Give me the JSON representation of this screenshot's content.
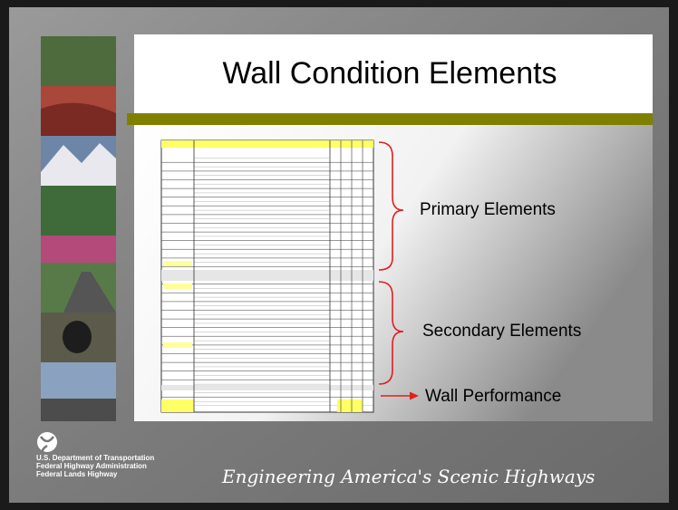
{
  "slide": {
    "title": "Wall Condition Elements",
    "labels": [
      "Primary Elements",
      "Secondary Elements",
      "Wall Performance"
    ],
    "footer": {
      "agency": [
        "U.S. Department of Transportation",
        "Federal Highway Administration",
        "Federal Lands Highway"
      ],
      "tagline": "Engineering America's Scenic Highways"
    }
  }
}
